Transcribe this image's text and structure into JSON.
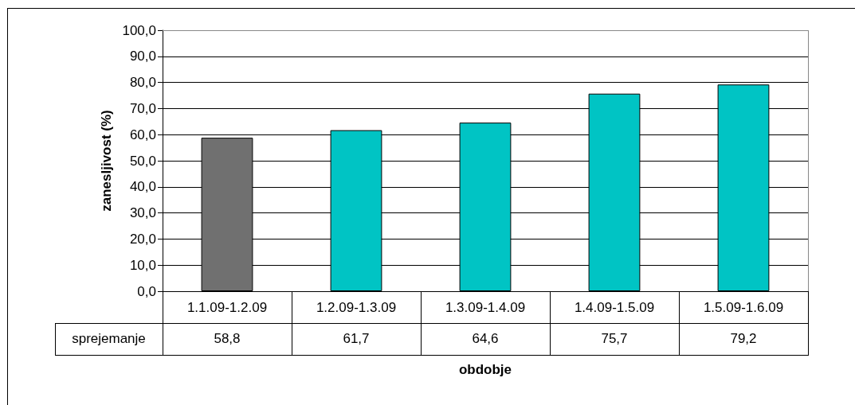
{
  "chart_data": {
    "type": "bar",
    "xlabel": "obdobje",
    "ylabel": "zanesljivost (%)",
    "categories": [
      "1.1.09-1.2.09",
      "1.2.09-1.3.09",
      "1.3.09-1.4.09",
      "1.4.09-1.5.09",
      "1.5.09-1.6.09"
    ],
    "series": [
      {
        "name": "sprejemanje",
        "colors": [
          "#707070",
          "#00c4c4",
          "#00c4c4",
          "#00c4c4",
          "#00c4c4"
        ],
        "values": [
          58.8,
          61.7,
          64.6,
          75.7,
          79.2
        ],
        "value_labels": [
          "58,8",
          "61,7",
          "64,6",
          "75,7",
          "79,2"
        ]
      }
    ],
    "ylim": [
      0,
      100
    ],
    "yticks": [
      {
        "value": 0,
        "label": "0,0"
      },
      {
        "value": 10,
        "label": "10,0"
      },
      {
        "value": 20,
        "label": "20,0"
      },
      {
        "value": 30,
        "label": "30,0"
      },
      {
        "value": 40,
        "label": "40,0"
      },
      {
        "value": 50,
        "label": "50,0"
      },
      {
        "value": 60,
        "label": "60,0"
      },
      {
        "value": 70,
        "label": "70,0"
      },
      {
        "value": 80,
        "label": "80,0"
      },
      {
        "value": 90,
        "label": "90,0"
      },
      {
        "value": 100,
        "label": "100,0"
      }
    ],
    "grid": "y",
    "legend": false
  }
}
